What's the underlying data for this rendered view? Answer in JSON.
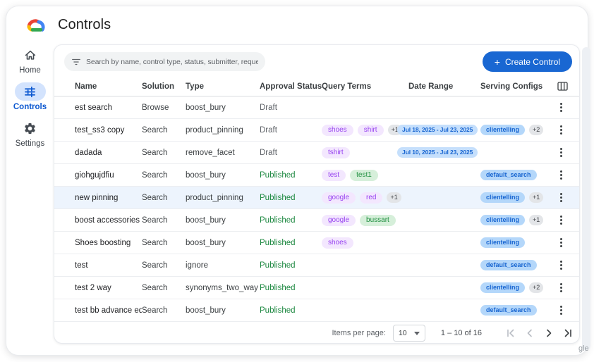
{
  "header": {
    "title": "Controls",
    "logo": "google-cloud-logo"
  },
  "sidebar": {
    "items": [
      {
        "label": "Home",
        "icon": "home-icon",
        "active": false
      },
      {
        "label": "Controls",
        "icon": "tune-icon",
        "active": true
      },
      {
        "label": "Settings",
        "icon": "gear-icon",
        "active": false
      }
    ]
  },
  "toolbar": {
    "search_placeholder": "Search by name, control type, status, submitter, requested on",
    "create_plus": "+",
    "create_label": "Create Control"
  },
  "table": {
    "columns": [
      "Name",
      "Solution",
      "Type",
      "Approval Status",
      "Query Terms",
      "Date Range",
      "Serving Configs"
    ],
    "rows": [
      {
        "name": "est search",
        "solution": "Browse",
        "type": "boost_bury",
        "status": "Draft",
        "query_terms": [],
        "date_range": "",
        "serving_configs": [],
        "highlighted": false
      },
      {
        "name": "test_ss3 copy",
        "solution": "Search",
        "type": "product_pinning",
        "status": "Draft",
        "query_terms": [
          {
            "text": "shoes",
            "variant": "purple"
          },
          {
            "text": "shirt",
            "variant": "purple"
          },
          {
            "text": "+1",
            "variant": "count"
          }
        ],
        "date_range": "Jul 18, 2025 - Jul 23, 2025",
        "serving_configs": [
          {
            "text": "clientelling",
            "variant": "blue"
          },
          {
            "text": "+2",
            "variant": "count"
          }
        ],
        "highlighted": false
      },
      {
        "name": "dadada",
        "solution": "Search",
        "type": "remove_facet",
        "status": "Draft",
        "query_terms": [
          {
            "text": "tshirt",
            "variant": "purple"
          }
        ],
        "date_range": "Jul 10, 2025 - Jul 23, 2025",
        "serving_configs": [],
        "highlighted": false
      },
      {
        "name": "giohgujdfiu",
        "solution": "Search",
        "type": "boost_bury",
        "status": "Published",
        "query_terms": [
          {
            "text": "test",
            "variant": "purple"
          },
          {
            "text": "test1",
            "variant": "green"
          }
        ],
        "date_range": "",
        "serving_configs": [
          {
            "text": "default_search",
            "variant": "blue"
          }
        ],
        "highlighted": false
      },
      {
        "name": "new pinning",
        "solution": "Search",
        "type": "product_pinning",
        "status": "Published",
        "query_terms": [
          {
            "text": "google",
            "variant": "purple"
          },
          {
            "text": "red",
            "variant": "purple"
          },
          {
            "text": "+1",
            "variant": "count"
          }
        ],
        "date_range": "",
        "serving_configs": [
          {
            "text": "clientelling",
            "variant": "blue"
          },
          {
            "text": "+1",
            "variant": "count"
          }
        ],
        "highlighted": true
      },
      {
        "name": "boost accessories",
        "solution": "Search",
        "type": "boost_bury",
        "status": "Published",
        "query_terms": [
          {
            "text": "google",
            "variant": "purple"
          },
          {
            "text": "bussart",
            "variant": "green"
          }
        ],
        "date_range": "",
        "serving_configs": [
          {
            "text": "clientelling",
            "variant": "blue"
          },
          {
            "text": "+1",
            "variant": "count"
          }
        ],
        "highlighted": false
      },
      {
        "name": "Shoes boosting",
        "solution": "Search",
        "type": "boost_bury",
        "status": "Published",
        "query_terms": [
          {
            "text": "shoes",
            "variant": "purple"
          }
        ],
        "date_range": "",
        "serving_configs": [
          {
            "text": "clientelling",
            "variant": "blue"
          }
        ],
        "highlighted": false
      },
      {
        "name": "test",
        "solution": "Search",
        "type": "ignore",
        "status": "Published",
        "query_terms": [],
        "date_range": "",
        "serving_configs": [
          {
            "text": "default_search",
            "variant": "blue"
          }
        ],
        "highlighted": false
      },
      {
        "name": "test 2 way",
        "solution": "Search",
        "type": "synonyms_two_way",
        "status": "Published",
        "query_terms": [],
        "date_range": "",
        "serving_configs": [
          {
            "text": "clientelling",
            "variant": "blue"
          },
          {
            "text": "+2",
            "variant": "count"
          }
        ],
        "highlighted": false
      },
      {
        "name": "test bb advance editor",
        "solution": "Search",
        "type": "boost_bury",
        "status": "Published",
        "query_terms": [],
        "date_range": "",
        "serving_configs": [
          {
            "text": "default_search",
            "variant": "blue"
          }
        ],
        "highlighted": false
      }
    ]
  },
  "pagination": {
    "items_per_page_label": "Items per page:",
    "page_size": "10",
    "range": "1 – 10 of 16"
  },
  "watermark": "gle",
  "colors": {
    "accent_blue": "#1967d2",
    "active_pill_bg": "#d3e3fd",
    "active_text": "#0b57d0",
    "published_green": "#1b873f",
    "draft_gray": "#5f6368",
    "chip_purple_bg": "#f3e7fe",
    "chip_purple_text": "#9640f0",
    "chip_green_bg": "#d6efda",
    "chip_green_text": "#1e8e3e",
    "chip_blue_bg": "#b4d7fa",
    "chip_blue_text": "#1765d1",
    "chip_count_bg": "#e3e5e8",
    "row_highlight_bg": "#edf4fd"
  }
}
